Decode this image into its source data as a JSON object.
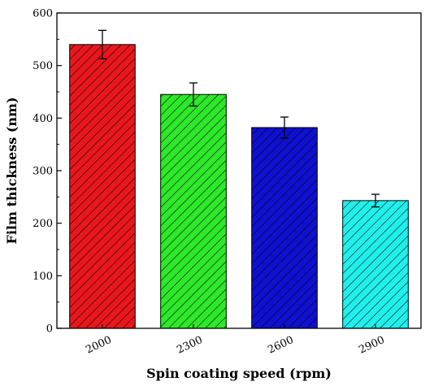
{
  "chart_data": {
    "type": "bar",
    "title": "",
    "xlabel": "Spin coating speed (rpm)",
    "ylabel": "Film thickness (nm)",
    "categories": [
      "2000",
      "2300",
      "2600",
      "2900"
    ],
    "values": [
      540,
      445,
      382,
      243
    ],
    "errors": [
      27,
      22,
      20,
      12
    ],
    "ylim": [
      0,
      600
    ],
    "yticks": [
      0,
      100,
      200,
      300,
      400,
      500,
      600
    ],
    "bar_colors": [
      "#e8171d",
      "#2ee82a",
      "#1010d0",
      "#20f0ec"
    ],
    "hatch": "diagonal",
    "grid": false,
    "legend": "none"
  }
}
